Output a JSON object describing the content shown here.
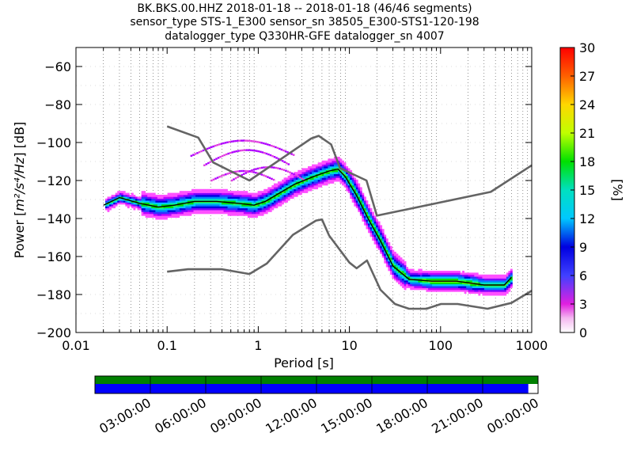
{
  "header": {
    "line1": "BK.BKS.00.HHZ   2018-01-18 -- 2018-01-18  (46/46 segments)",
    "line2": "sensor_type STS-1_E300 sensor_sn 38505_E300-STS1-120-198",
    "line3": "datalogger_type Q330HR-GFE datalogger_sn 4007"
  },
  "chart_data": [
    {
      "type": "heatmap",
      "xlabel": "Period [s]",
      "ylabel_prefix": "Power [",
      "ylabel_units": "m²/s⁴/Hz",
      "ylabel_suffix": "] [dB]",
      "x_scale": "log",
      "xlim": [
        0.01,
        1000
      ],
      "ylim": [
        -200,
        -50
      ],
      "x_tick_labels": [
        "0.01",
        "0.1",
        "1",
        "10",
        "100",
        "1000"
      ],
      "x_ticks": [
        0.01,
        0.1,
        1,
        10,
        100,
        1000
      ],
      "y_ticks": [
        -200,
        -180,
        -160,
        -140,
        -120,
        -100,
        -80,
        -60
      ],
      "y_tick_labels": [
        "−200",
        "−180",
        "−160",
        "−140",
        "−120",
        "−100",
        "−80",
        "−60"
      ],
      "grid": "dotted vertical lines at log-spaced periods",
      "noise_model_high": [
        [
          0.1,
          -91.5
        ],
        [
          0.22,
          -97.4
        ],
        [
          0.32,
          -110.5
        ],
        [
          0.8,
          -120
        ],
        [
          3.8,
          -97.9
        ],
        [
          4.6,
          -96.5
        ],
        [
          6.3,
          -101
        ],
        [
          7.9,
          -113.5
        ],
        [
          15.4,
          -120
        ],
        [
          20,
          -138.5
        ],
        [
          354.8,
          -126
        ],
        [
          1000,
          -112
        ]
      ],
      "noise_model_low": [
        [
          0.1,
          -168
        ],
        [
          0.17,
          -166.7
        ],
        [
          0.4,
          -166.7
        ],
        [
          0.8,
          -169.2
        ],
        [
          1.24,
          -163.7
        ],
        [
          2.4,
          -148.6
        ],
        [
          4.3,
          -141.1
        ],
        [
          5,
          -140.5
        ],
        [
          6,
          -149
        ],
        [
          10,
          -163.2
        ],
        [
          12,
          -166.2
        ],
        [
          15.6,
          -162.1
        ],
        [
          21.9,
          -177.5
        ],
        [
          31.6,
          -185
        ],
        [
          45,
          -187.5
        ],
        [
          70,
          -187.5
        ],
        [
          101,
          -185
        ],
        [
          154,
          -185
        ],
        [
          328,
          -187.5
        ],
        [
          600,
          -184.4
        ],
        [
          1000,
          -178
        ]
      ],
      "mean_curve": [
        [
          0.02,
          -133
        ],
        [
          0.03,
          -129
        ],
        [
          0.05,
          -132
        ],
        [
          0.08,
          -134
        ],
        [
          0.12,
          -133
        ],
        [
          0.2,
          -131
        ],
        [
          0.35,
          -131
        ],
        [
          0.6,
          -132
        ],
        [
          0.9,
          -133
        ],
        [
          1.2,
          -131
        ],
        [
          1.8,
          -126
        ],
        [
          2.5,
          -122
        ],
        [
          4,
          -118
        ],
        [
          6,
          -115
        ],
        [
          7.5,
          -114
        ],
        [
          9,
          -118
        ],
        [
          12,
          -128
        ],
        [
          16,
          -140
        ],
        [
          22,
          -152
        ],
        [
          30,
          -165
        ],
        [
          45,
          -172
        ],
        [
          80,
          -173
        ],
        [
          150,
          -173
        ],
        [
          300,
          -175
        ],
        [
          500,
          -175
        ],
        [
          600,
          -171
        ]
      ],
      "colorbar": {
        "label": "[%]",
        "min": 0,
        "max": 30,
        "ticks": [
          0,
          3,
          6,
          9,
          12,
          15,
          18,
          21,
          24,
          27,
          30
        ],
        "colormap": "pqlx (white-magenta-blue-cyan-green-yellow-red)"
      }
    },
    {
      "type": "timeline",
      "description_free": true,
      "time_labels": [
        "03:00:00",
        "06:00:00",
        "09:00:00",
        "12:00:00",
        "15:00:00",
        "18:00:00",
        "21:00:00",
        "00:00:00"
      ],
      "data_coverage_fraction": 0.978,
      "coverage_colors": {
        "top": "#008000",
        "bottom": "#0000ff"
      }
    }
  ]
}
